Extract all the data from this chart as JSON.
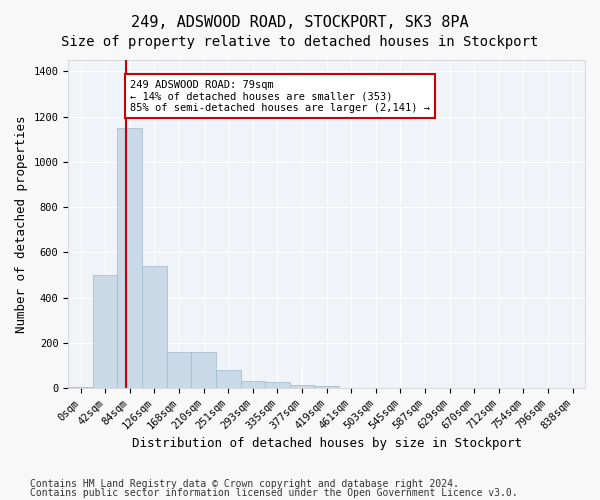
{
  "title1": "249, ADSWOOD ROAD, STOCKPORT, SK3 8PA",
  "title2": "Size of property relative to detached houses in Stockport",
  "xlabel": "Distribution of detached houses by size in Stockport",
  "ylabel": "Number of detached properties",
  "footnote1": "Contains HM Land Registry data © Crown copyright and database right 2024.",
  "footnote2": "Contains public sector information licensed under the Open Government Licence v3.0.",
  "bin_labels": [
    "0sqm",
    "42sqm",
    "84sqm",
    "126sqm",
    "168sqm",
    "210sqm",
    "251sqm",
    "293sqm",
    "335sqm",
    "377sqm",
    "419sqm",
    "461sqm",
    "503sqm",
    "545sqm",
    "587sqm",
    "629sqm",
    "670sqm",
    "712sqm",
    "754sqm",
    "796sqm",
    "838sqm"
  ],
  "bar_values": [
    5,
    500,
    1150,
    540,
    160,
    160,
    80,
    30,
    25,
    15,
    10,
    0,
    0,
    0,
    0,
    0,
    0,
    0,
    0,
    0,
    0
  ],
  "bar_color": "#c9d9e8",
  "bar_edge_color": "#a0b8cc",
  "ylim": [
    0,
    1450
  ],
  "yticks": [
    0,
    200,
    400,
    600,
    800,
    1000,
    1200,
    1400
  ],
  "property_line_x": 1.85,
  "property_line_color": "#cc0000",
  "annotation_text": "249 ADSWOOD ROAD: 79sqm\n← 14% of detached houses are smaller (353)\n85% of semi-detached houses are larger (2,141) →",
  "annotation_box_color": "#cc0000",
  "background_color": "#f0f4f8",
  "grid_color": "#ffffff",
  "title1_fontsize": 11,
  "title2_fontsize": 10,
  "xlabel_fontsize": 9,
  "ylabel_fontsize": 9,
  "tick_fontsize": 7.5,
  "footnote_fontsize": 7
}
